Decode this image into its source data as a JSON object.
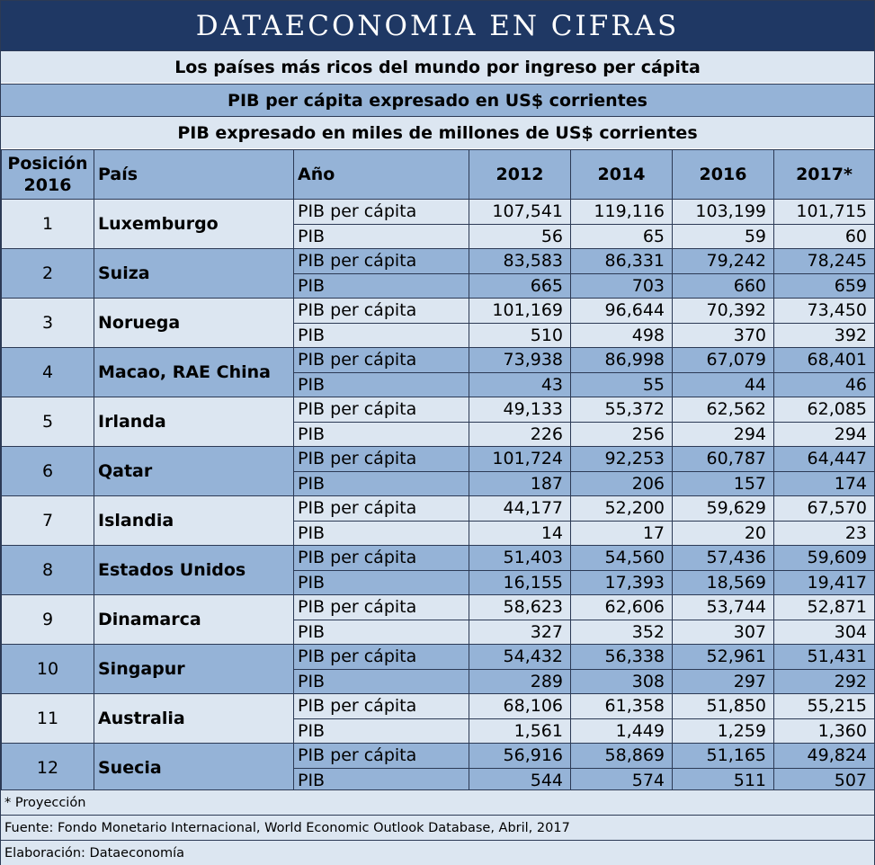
{
  "banner": "DATAECONOMIA EN CIFRAS",
  "subtitles": [
    "Los países más ricos del mundo por ingreso per cápita",
    "PIB per cápita expresado en US$ corrientes",
    "PIB expresado en miles de millones de US$ corrientes"
  ],
  "headers": {
    "position_line1": "Posición",
    "position_line2": "2016",
    "country": "País",
    "year": "Año",
    "years": [
      "2012",
      "2014",
      "2016",
      "2017*"
    ]
  },
  "indicator_labels": [
    "PIB per cápita",
    "PIB"
  ],
  "rows": [
    {
      "pos": "1",
      "country": "Luxemburgo",
      "pc": [
        "107,541",
        "119,116",
        "103,199",
        "101,715"
      ],
      "pib": [
        "56",
        "65",
        "59",
        "60"
      ]
    },
    {
      "pos": "2",
      "country": "Suiza",
      "pc": [
        "83,583",
        "86,331",
        "79,242",
        "78,245"
      ],
      "pib": [
        "665",
        "703",
        "660",
        "659"
      ]
    },
    {
      "pos": "3",
      "country": "Noruega",
      "pc": [
        "101,169",
        "96,644",
        "70,392",
        "73,450"
      ],
      "pib": [
        "510",
        "498",
        "370",
        "392"
      ]
    },
    {
      "pos": "4",
      "country": "Macao, RAE China",
      "pc": [
        "73,938",
        "86,998",
        "67,079",
        "68,401"
      ],
      "pib": [
        "43",
        "55",
        "44",
        "46"
      ]
    },
    {
      "pos": "5",
      "country": "Irlanda",
      "pc": [
        "49,133",
        "55,372",
        "62,562",
        "62,085"
      ],
      "pib": [
        "226",
        "256",
        "294",
        "294"
      ]
    },
    {
      "pos": "6",
      "country": "Qatar",
      "pc": [
        "101,724",
        "92,253",
        "60,787",
        "64,447"
      ],
      "pib": [
        "187",
        "206",
        "157",
        "174"
      ]
    },
    {
      "pos": "7",
      "country": "Islandia",
      "pc": [
        "44,177",
        "52,200",
        "59,629",
        "67,570"
      ],
      "pib": [
        "14",
        "17",
        "20",
        "23"
      ]
    },
    {
      "pos": "8",
      "country": "Estados Unidos",
      "pc": [
        "51,403",
        "54,560",
        "57,436",
        "59,609"
      ],
      "pib": [
        "16,155",
        "17,393",
        "18,569",
        "19,417"
      ]
    },
    {
      "pos": "9",
      "country": "Dinamarca",
      "pc": [
        "58,623",
        "62,606",
        "53,744",
        "52,871"
      ],
      "pib": [
        "327",
        "352",
        "307",
        "304"
      ]
    },
    {
      "pos": "10",
      "country": "Singapur",
      "pc": [
        "54,432",
        "56,338",
        "52,961",
        "51,431"
      ],
      "pib": [
        "289",
        "308",
        "297",
        "292"
      ]
    },
    {
      "pos": "11",
      "country": "Australia",
      "pc": [
        "68,106",
        "61,358",
        "51,850",
        "55,215"
      ],
      "pib": [
        "1,561",
        "1,449",
        "1,259",
        "1,360"
      ]
    },
    {
      "pos": "12",
      "country": "Suecia",
      "pc": [
        "56,916",
        "58,869",
        "51,165",
        "49,824"
      ],
      "pib": [
        "544",
        "574",
        "511",
        "507"
      ]
    }
  ],
  "footer": {
    "note": "* Proyección",
    "source": "Fuente: Fondo Monetario Internacional, World Economic Outlook Database, Abril, 2017",
    "credit": "Elaboración: Dataeconomía"
  }
}
